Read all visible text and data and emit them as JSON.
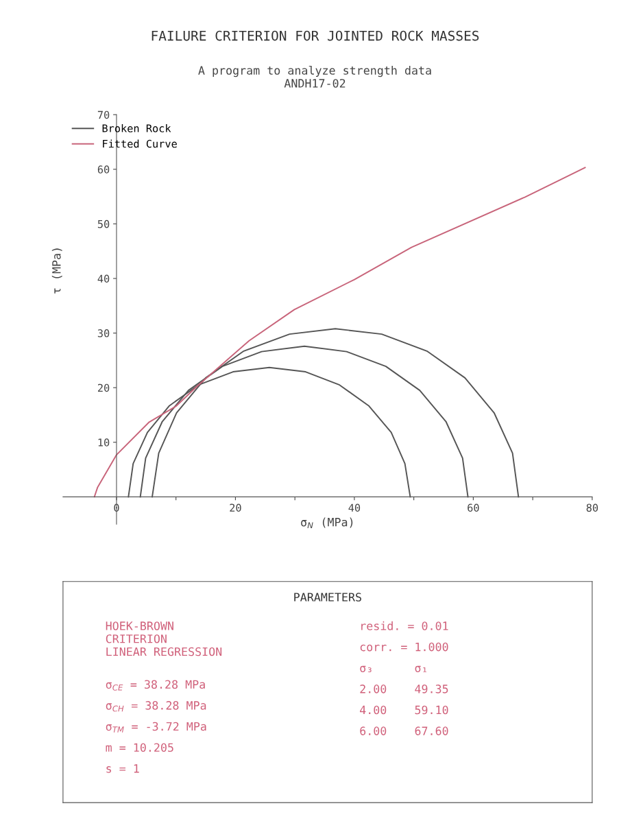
{
  "chart_data": {
    "type": "line",
    "title": "FAILURE CRITERION FOR JOINTED ROCK MASSES",
    "subtitle": "A program to analyze strength data\nANDH17-02",
    "xlabel": "σ$_{N}$ (MPa)",
    "ylabel": "τ (MPa)",
    "xlim": [
      -9,
      80
    ],
    "ylim": [
      -5,
      70
    ],
    "xticks": [
      0,
      {
        "value": 10,
        "label": null
      },
      20,
      {
        "value": 30,
        "label": null
      },
      40,
      {
        "value": 50,
        "label": null
      },
      60,
      {
        "value": 70,
        "label": null
      },
      80
    ],
    "yticks": [
      10,
      20,
      30,
      40,
      50,
      60,
      70
    ],
    "grid": false,
    "legend": "top left",
    "marker": "none",
    "line_style": "solid",
    "series": [
      {
        "name": "Broken Rock",
        "color": "#555555",
        "x": [
          49.4,
          48.5,
          46.2,
          42.4,
          37.5,
          31.8,
          25.7,
          19.6,
          13.8,
          8.9,
          5.2,
          2.8,
          2.0
        ],
        "values": [
          0,
          6.1,
          11.8,
          16.7,
          20.5,
          22.9,
          23.7,
          22.9,
          20.5,
          16.7,
          11.8,
          6.1,
          0
        ]
      },
      {
        "color": "#555555",
        "x": [
          59.1,
          58.2,
          55.4,
          51.0,
          45.3,
          38.7,
          31.6,
          24.4,
          17.8,
          12.1,
          7.7,
          4.9,
          4.0
        ],
        "values": [
          0,
          7.1,
          13.8,
          19.5,
          23.9,
          26.6,
          27.6,
          26.6,
          23.9,
          19.5,
          13.8,
          7.1,
          0
        ]
      },
      {
        "color": "#555555",
        "x": [
          67.6,
          66.6,
          63.5,
          58.6,
          52.2,
          44.6,
          36.8,
          29.1,
          21.4,
          15.0,
          10.1,
          7.1,
          6.0
        ],
        "values": [
          0,
          8.0,
          15.4,
          21.8,
          26.7,
          29.8,
          30.8,
          29.8,
          26.7,
          21.8,
          15.4,
          8.0,
          0
        ]
      },
      {
        "name": "Fitted Curve",
        "color": "#c8647a",
        "x": [
          -3.72,
          -3.2,
          0,
          5.5,
          10,
          13.6,
          22.3,
          29.9,
          40,
          49.6,
          68.7,
          78.8
        ],
        "values": [
          0,
          1.7,
          7.7,
          13.7,
          16.6,
          20.3,
          28.6,
          34.3,
          39.8,
          45.7,
          54.9,
          60.3
        ]
      }
    ],
    "annotations": [
      "PARAMETERS",
      "HOEK-BROWN\nCRITERION\nLINEAR REGRESSION",
      "σ$_{CE}$ = 38.28 MPa",
      "σ$_{CH}$ = 38.28 MPa",
      "σ$_{TM}$ = -3.72 MPa",
      "m = 10.205",
      "s = 1",
      "resid. = 0.01",
      "corr. = 1.000",
      "σ₃      σ₁",
      "2.00    49.35",
      "4.00    59.10",
      "6.00    67.60"
    ]
  }
}
